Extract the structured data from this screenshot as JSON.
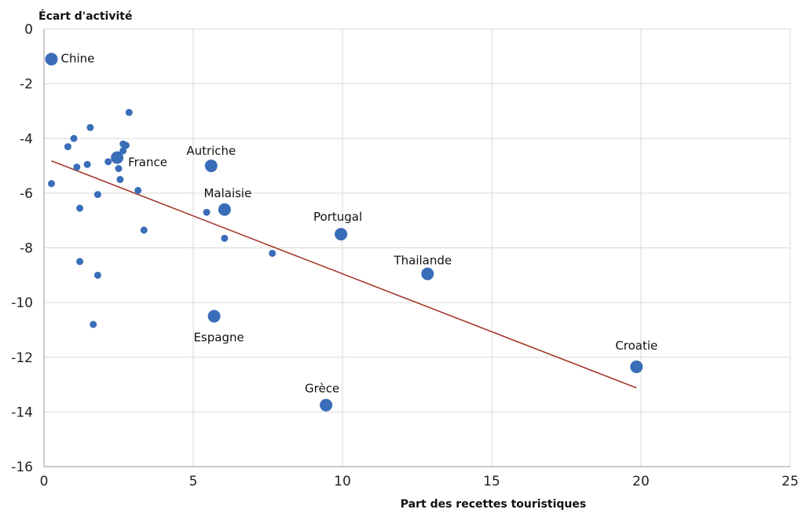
{
  "chart_data": {
    "type": "scatter",
    "xlabel": "Part des recettes touristiques",
    "ylabel": "Écart d'activité",
    "xlim": [
      0,
      25
    ],
    "ylim": [
      -16,
      0
    ],
    "xticks": [
      0,
      5,
      10,
      15,
      20,
      25
    ],
    "yticks": [
      0,
      -2,
      -4,
      -6,
      -8,
      -10,
      -12,
      -14,
      -16
    ],
    "grid": true,
    "colors": {
      "points": "#3A6DB8",
      "trend": "#A63A2F"
    },
    "labeled_points": [
      {
        "label": "Chine",
        "x": 0.25,
        "y": -1.1
      },
      {
        "label": "France",
        "x": 2.45,
        "y": -4.7
      },
      {
        "label": "Autriche",
        "x": 5.6,
        "y": -5.0
      },
      {
        "label": "Malaisie",
        "x": 6.05,
        "y": -6.6
      },
      {
        "label": "Portugal",
        "x": 9.95,
        "y": -7.5
      },
      {
        "label": "Thailande",
        "x": 12.85,
        "y": -8.95
      },
      {
        "label": "Espagne",
        "x": 5.7,
        "y": -10.5
      },
      {
        "label": "Grèce",
        "x": 9.45,
        "y": -13.75
      },
      {
        "label": "Croatie",
        "x": 19.85,
        "y": -12.35
      }
    ],
    "other_points": [
      {
        "x": 0.25,
        "y": -5.65
      },
      {
        "x": 0.8,
        "y": -4.3
      },
      {
        "x": 1.0,
        "y": -4.0
      },
      {
        "x": 1.1,
        "y": -5.05
      },
      {
        "x": 1.2,
        "y": -6.55
      },
      {
        "x": 1.2,
        "y": -8.5
      },
      {
        "x": 1.45,
        "y": -4.95
      },
      {
        "x": 1.55,
        "y": -3.6
      },
      {
        "x": 1.65,
        "y": -10.8
      },
      {
        "x": 1.8,
        "y": -6.05
      },
      {
        "x": 1.8,
        "y": -9.0
      },
      {
        "x": 2.15,
        "y": -4.85
      },
      {
        "x": 2.5,
        "y": -5.1
      },
      {
        "x": 2.55,
        "y": -5.5
      },
      {
        "x": 2.65,
        "y": -4.2
      },
      {
        "x": 2.65,
        "y": -4.45
      },
      {
        "x": 2.75,
        "y": -4.25
      },
      {
        "x": 2.85,
        "y": -3.05
      },
      {
        "x": 3.15,
        "y": -5.9
      },
      {
        "x": 3.35,
        "y": -7.35
      },
      {
        "x": 5.45,
        "y": -6.7
      },
      {
        "x": 6.05,
        "y": -7.65
      },
      {
        "x": 7.65,
        "y": -8.2
      }
    ],
    "trendline": {
      "x": [
        0.25,
        19.85
      ],
      "y": [
        -4.82,
        -13.12
      ]
    }
  }
}
